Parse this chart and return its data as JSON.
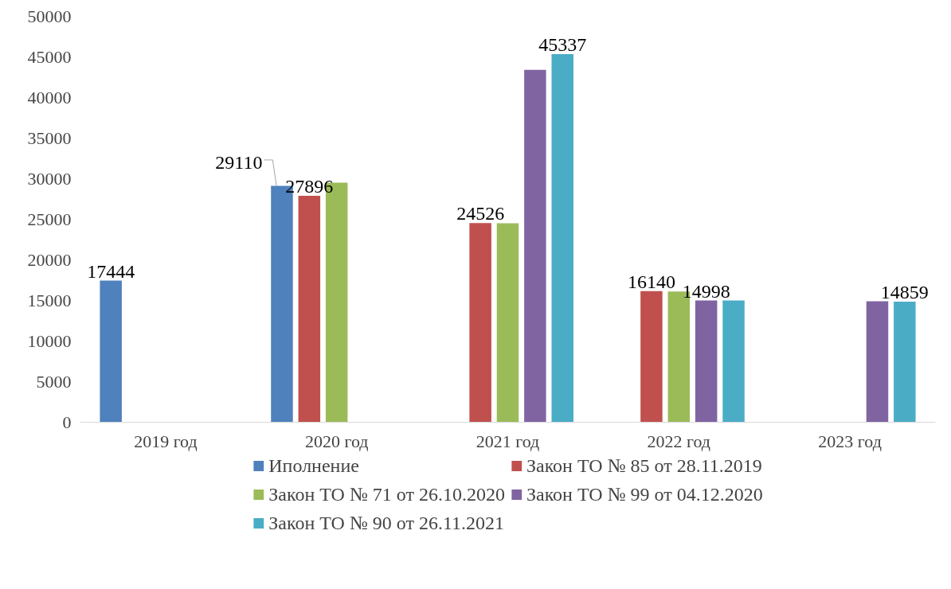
{
  "chart_data": {
    "type": "bar",
    "categories": [
      "2019 год",
      "2020 год",
      "2021 год",
      "2022 год",
      "2023 год"
    ],
    "series": [
      {
        "name": "Иполнение",
        "color": "#4f81bd",
        "values": [
          17444,
          29110,
          null,
          null,
          null
        ],
        "value_labels": [
          "17444",
          "29110",
          null,
          null,
          null
        ]
      },
      {
        "name": "Закон ТО № 85 от 28.11.2019",
        "color": "#c0504d",
        "values": [
          null,
          27896,
          24526,
          16140,
          null
        ],
        "value_labels": [
          null,
          "27896",
          "24526",
          "16140",
          null
        ]
      },
      {
        "name": "Закон ТО № 71 от 26.10.2020",
        "color": "#9bbb59",
        "values": [
          null,
          29500,
          24500,
          16100,
          null
        ],
        "value_labels": [
          null,
          null,
          null,
          null,
          null
        ]
      },
      {
        "name": "Закон ТО № 99 от 04.12.2020",
        "color": "#8064a2",
        "values": [
          null,
          null,
          43400,
          14998,
          14900
        ],
        "value_labels": [
          null,
          null,
          null,
          "14998",
          null
        ]
      },
      {
        "name": "Закон ТО № 90 от 26.11.2021",
        "color": "#4bacc6",
        "values": [
          null,
          null,
          45337,
          15000,
          14859
        ],
        "value_labels": [
          null,
          null,
          "45337",
          null,
          "14859"
        ]
      }
    ],
    "ylim": [
      0,
      50000
    ],
    "yticks": [
      0,
      5000,
      10000,
      15000,
      20000,
      25000,
      30000,
      35000,
      40000,
      45000,
      50000
    ],
    "grid": false,
    "legend": "bottom"
  }
}
